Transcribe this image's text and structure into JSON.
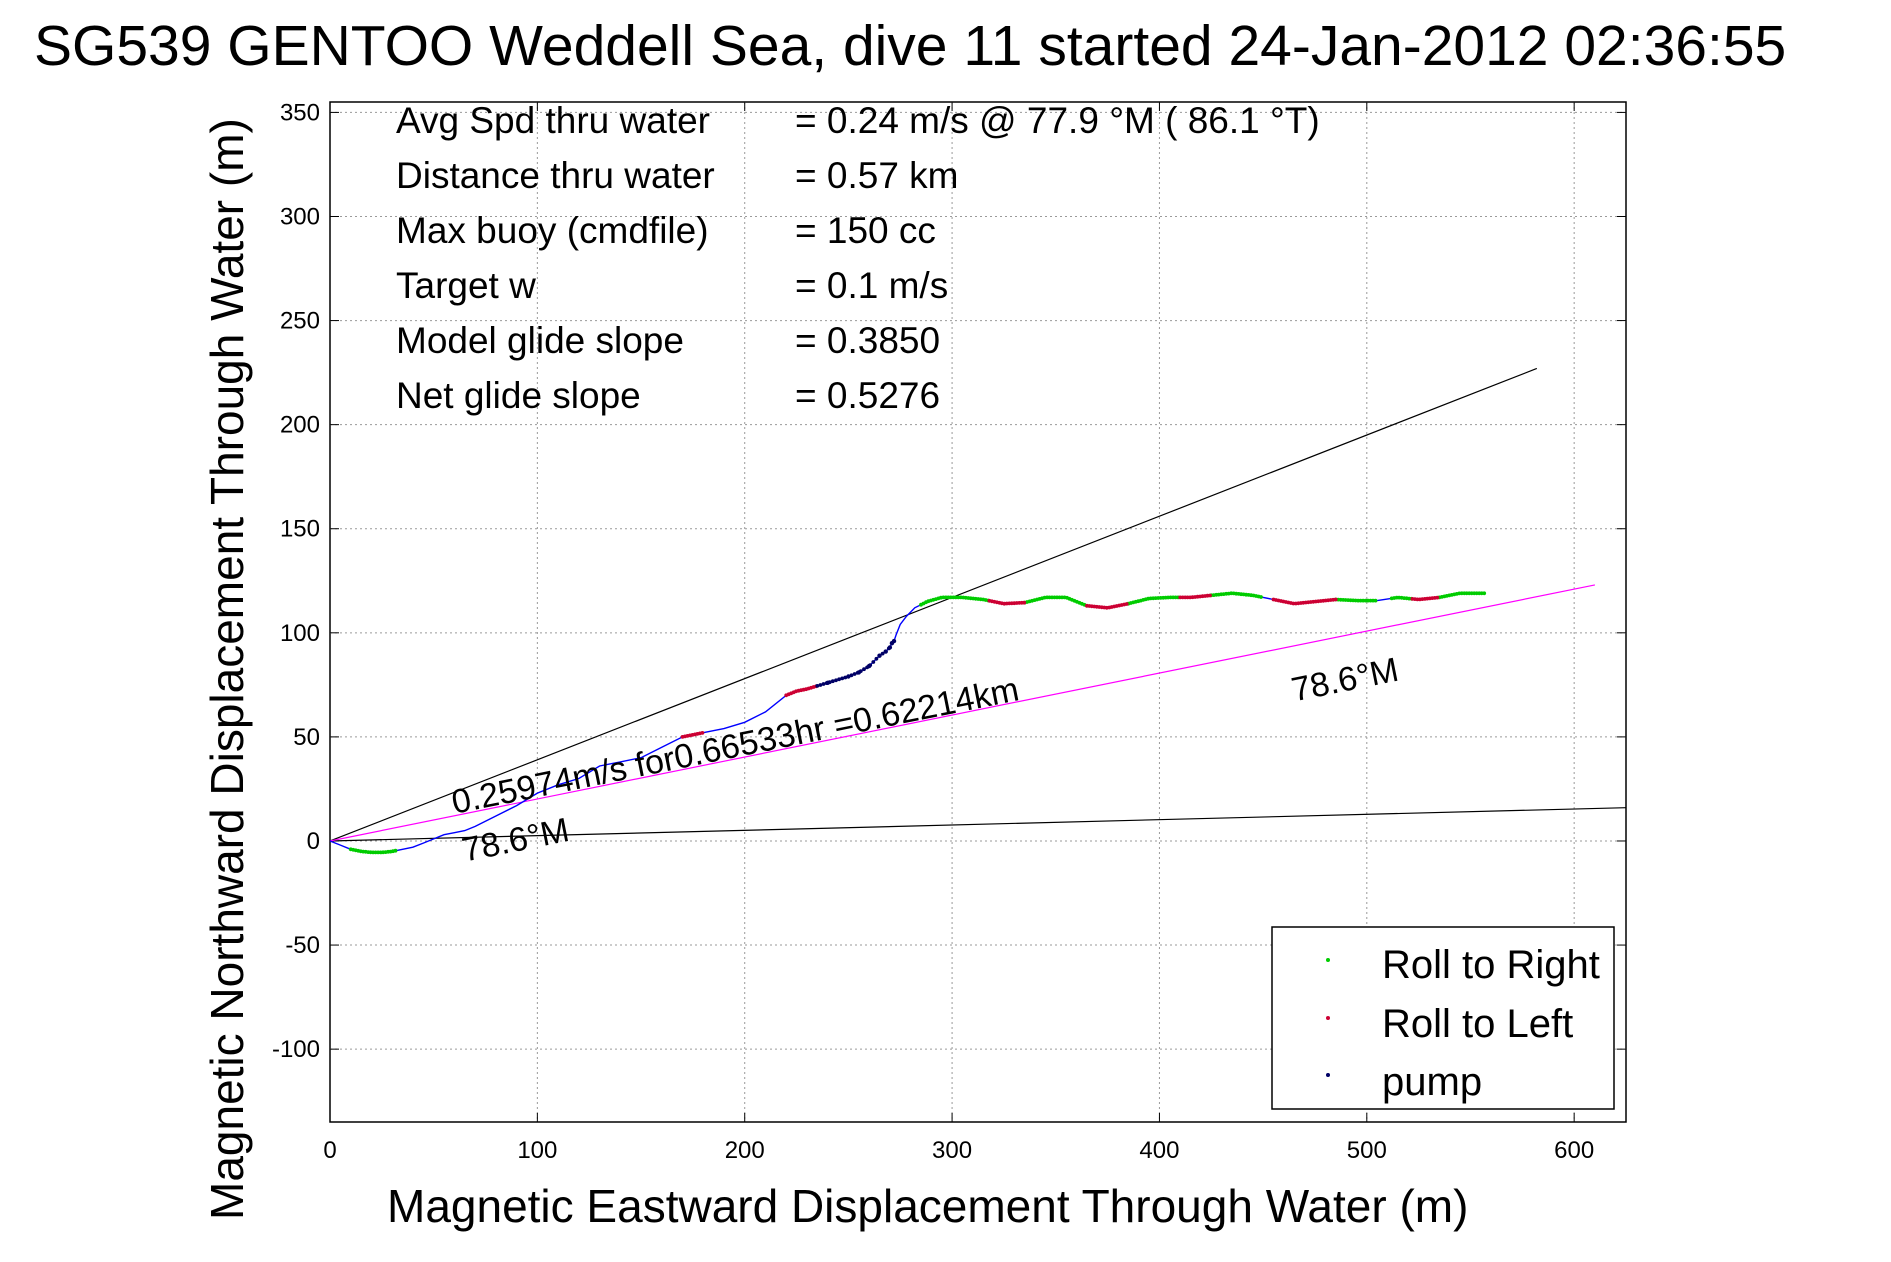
{
  "chart_data": {
    "type": "line",
    "title": "SG539 GENTOO Weddell Sea, dive 11 started 24-Jan-2012 02:36:55",
    "xlabel": "Magnetic Eastward Displacement Through Water (m)",
    "ylabel": "Magnetic Northward Displacement Through Water (m)",
    "xlim": [
      0,
      625
    ],
    "ylim": [
      -135,
      355
    ],
    "xticks": [
      0,
      100,
      200,
      300,
      400,
      500,
      600
    ],
    "yticks": [
      350,
      300,
      250,
      200,
      150,
      100,
      50,
      0,
      -50,
      -100
    ],
    "grid": true,
    "legend_position": "bottom-right",
    "stats": [
      {
        "label": "Avg Spd thru water",
        "value": "=  0.24 m/s @  77.9 °M ( 86.1 °T)"
      },
      {
        "label": "Distance thru water",
        "value": "=  0.57 km"
      },
      {
        "label": "Max buoy (cmdfile)",
        "value": "= 150 cc"
      },
      {
        "label": "Target w",
        "value": "= 0.1 m/s"
      },
      {
        "label": "Model glide slope",
        "value": "= 0.3850"
      },
      {
        "label": "Net glide slope",
        "value": "= 0.5276"
      }
    ],
    "annotations": [
      {
        "text": "0.25974m/s for0.66533hr =0.62214km",
        "x": 60,
        "y": 13,
        "angle_deg": -11.4
      },
      {
        "text": "78.6°M",
        "x": 65,
        "y": -10,
        "angle_deg": -11.4
      },
      {
        "text": "78.6°M",
        "x": 465,
        "y": 67,
        "angle_deg": -11.4
      }
    ],
    "legend": [
      {
        "name": "Roll to Right",
        "color": "#00cc00"
      },
      {
        "name": "Roll to Left",
        "color": "#cc0033"
      },
      {
        "name": "pump",
        "color": "#000066"
      }
    ],
    "reference_lines": [
      {
        "color": "#000000",
        "points": [
          [
            0,
            0
          ],
          [
            582,
            227
          ]
        ]
      },
      {
        "color": "#000000",
        "points": [
          [
            0,
            0
          ],
          [
            625,
            16
          ]
        ]
      },
      {
        "color": "#ff00ff",
        "points": [
          [
            0,
            0
          ],
          [
            610,
            123
          ]
        ]
      }
    ],
    "series": [
      {
        "color": "#0000ff",
        "points": [
          [
            0,
            0
          ],
          [
            5,
            -2
          ],
          [
            10,
            -4
          ],
          [
            15,
            -5
          ],
          [
            20,
            -5.5
          ],
          [
            25,
            -5.5
          ],
          [
            30,
            -5
          ],
          [
            35,
            -4
          ],
          [
            40,
            -3
          ],
          [
            45,
            -1
          ],
          [
            50,
            1
          ],
          [
            55,
            3
          ],
          [
            60,
            4
          ],
          [
            65,
            5
          ],
          [
            70,
            7
          ],
          [
            80,
            12
          ],
          [
            90,
            17
          ],
          [
            100,
            23
          ],
          [
            110,
            27
          ],
          [
            120,
            30
          ],
          [
            130,
            36
          ],
          [
            140,
            38
          ],
          [
            150,
            40
          ],
          [
            160,
            45
          ],
          [
            170,
            50
          ],
          [
            180,
            52
          ],
          [
            190,
            54
          ],
          [
            200,
            57
          ],
          [
            210,
            62
          ],
          [
            220,
            70
          ],
          [
            225,
            72
          ],
          [
            230,
            73
          ],
          [
            240,
            76
          ],
          [
            250,
            79
          ],
          [
            255,
            81
          ],
          [
            260,
            84
          ],
          [
            265,
            89
          ],
          [
            268,
            91
          ],
          [
            270,
            93
          ],
          [
            271,
            95
          ],
          [
            272,
            96
          ],
          [
            273,
            99
          ],
          [
            275,
            104
          ],
          [
            278,
            108
          ],
          [
            282,
            112
          ],
          [
            288,
            115
          ],
          [
            295,
            117
          ],
          [
            305,
            117
          ],
          [
            315,
            116
          ],
          [
            325,
            114
          ],
          [
            335,
            114.5
          ],
          [
            345,
            117
          ],
          [
            355,
            117
          ],
          [
            365,
            113
          ],
          [
            375,
            112
          ],
          [
            385,
            114
          ],
          [
            395,
            116.5
          ],
          [
            405,
            117
          ],
          [
            415,
            117
          ],
          [
            425,
            118
          ],
          [
            435,
            119
          ],
          [
            445,
            118
          ],
          [
            455,
            116
          ],
          [
            465,
            114
          ],
          [
            475,
            115
          ],
          [
            485,
            116
          ],
          [
            495,
            115.5
          ],
          [
            505,
            115.5
          ],
          [
            515,
            117
          ],
          [
            525,
            116
          ],
          [
            535,
            117
          ],
          [
            545,
            119
          ],
          [
            555,
            119
          ]
        ]
      }
    ],
    "roll_right_segments": [
      [
        10,
        32
      ],
      [
        285,
        318
      ],
      [
        335,
        365
      ],
      [
        385,
        410
      ],
      [
        425,
        450
      ],
      [
        485,
        505
      ],
      [
        512,
        522
      ],
      [
        535,
        557
      ]
    ],
    "roll_left_segments": [
      [
        170,
        180
      ],
      [
        220,
        235
      ],
      [
        318,
        335
      ],
      [
        365,
        385
      ],
      [
        410,
        425
      ],
      [
        455,
        485
      ],
      [
        522,
        535
      ]
    ],
    "pump_segments": [
      [
        235,
        272
      ]
    ]
  }
}
